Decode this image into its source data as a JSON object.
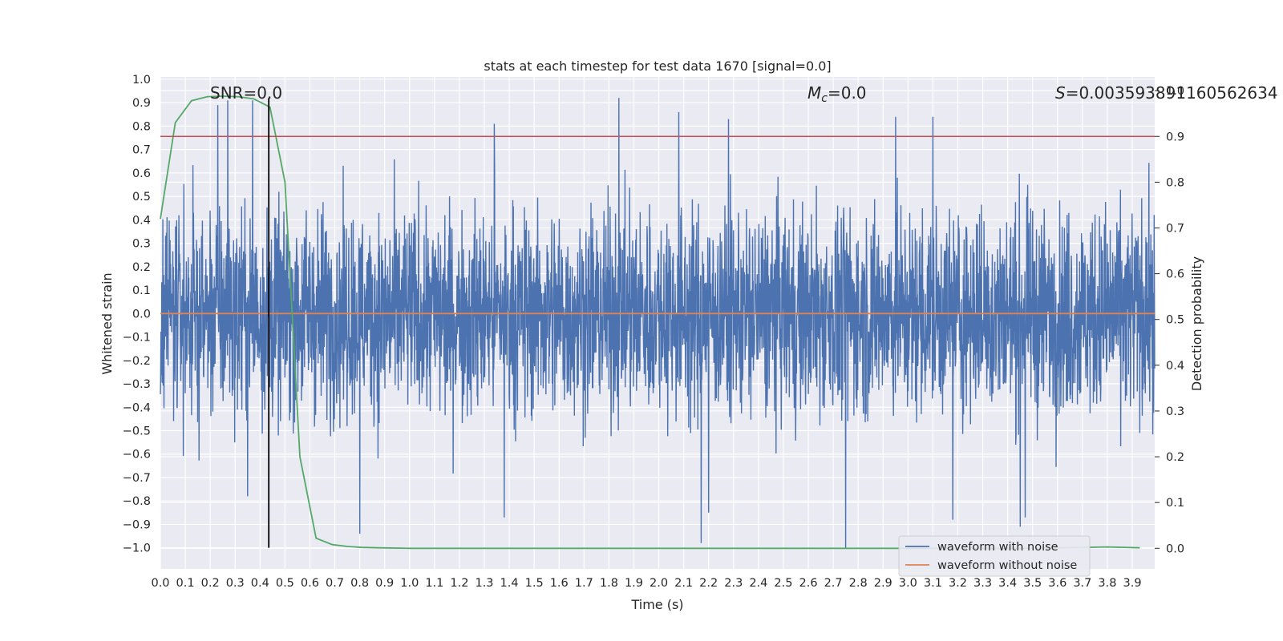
{
  "chart_data": {
    "type": "line",
    "title": "stats at each timestep for test data 1670 [signal=0.0]",
    "xlabel": "Time (s)",
    "ylabel": "Whitened strain",
    "y2label": "Detection probability",
    "xlim": [
      0.0,
      3.99
    ],
    "ylim": [
      -1.09,
      1.01
    ],
    "y2lim": [
      -0.045,
      1.03
    ],
    "xticks": [
      "0.0",
      "0.1",
      "0.2",
      "0.3",
      "0.4",
      "0.5",
      "0.6",
      "0.7",
      "0.8",
      "0.9",
      "1.0",
      "1.1",
      "1.2",
      "1.3",
      "1.4",
      "1.5",
      "1.6",
      "1.7",
      "1.8",
      "1.9",
      "2.0",
      "2.1",
      "2.2",
      "2.3",
      "2.4",
      "2.5",
      "2.6",
      "2.7",
      "2.8",
      "2.9",
      "3.0",
      "3.1",
      "3.2",
      "3.3",
      "3.4",
      "3.5",
      "3.6",
      "3.7",
      "3.8",
      "3.9"
    ],
    "yticks": [
      "1.0",
      "0.9",
      "0.8",
      "0.7",
      "0.6",
      "0.5",
      "0.4",
      "0.3",
      "0.2",
      "0.1",
      "0.0",
      "−0.1",
      "−0.2",
      "−0.3",
      "−0.4",
      "−0.5",
      "−0.6",
      "−0.7",
      "−0.8",
      "−0.9",
      "−1.0"
    ],
    "y2ticks": [
      "1.0",
      "0.9",
      "0.8",
      "0.7",
      "0.6",
      "0.5",
      "0.4",
      "0.3",
      "0.2",
      "0.1",
      "0.0"
    ],
    "grid": true,
    "legend_position": "bottom-right",
    "annotations": {
      "snr": "SNR=0.0",
      "mc_symbol": "M",
      "mc_sub": "c",
      "mc_value": "=0.0",
      "s_symbol": "S",
      "s_value": "=0.003593891160562634"
    },
    "series": [
      {
        "name": "waveform with noise",
        "color": "#4c72b0",
        "axis": "left",
        "style": "dense-noise",
        "typical_range": [
          -0.45,
          0.45
        ],
        "peaks_high": [
          [
            0.2,
            0.44
          ],
          [
            0.23,
            0.89
          ],
          [
            0.27,
            0.91
          ],
          [
            0.37,
            0.91
          ],
          [
            1.84,
            0.92
          ],
          [
            2.08,
            0.86
          ],
          [
            2.28,
            0.83
          ],
          [
            2.95,
            0.84
          ],
          [
            3.1,
            0.84
          ],
          [
            1.34,
            0.81
          ]
        ],
        "peaks_low": [
          [
            0.35,
            -0.78
          ],
          [
            0.8,
            -0.94
          ],
          [
            1.38,
            -0.87
          ],
          [
            2.17,
            -0.98
          ],
          [
            2.2,
            -0.85
          ],
          [
            2.75,
            -1.0
          ],
          [
            3.18,
            -0.88
          ],
          [
            3.45,
            -0.91
          ],
          [
            3.47,
            -0.87
          ]
        ]
      },
      {
        "name": "waveform without noise",
        "color": "#dd8452",
        "axis": "left",
        "x": [
          0.0,
          3.99
        ],
        "y": [
          0.0,
          0.0
        ]
      },
      {
        "name": "Detection probability",
        "color": "#55a868",
        "axis": "right",
        "x": [
          0.0,
          0.06,
          0.125,
          0.19,
          0.25,
          0.31,
          0.375,
          0.44,
          0.5,
          0.56,
          0.625,
          0.69,
          0.75,
          0.81,
          0.875,
          1.0,
          1.5,
          2.0,
          2.5,
          3.0,
          3.5,
          3.8,
          3.93
        ],
        "y": [
          0.72,
          0.93,
          0.978,
          0.987,
          0.988,
          0.987,
          0.982,
          0.964,
          0.8,
          0.2,
          0.022,
          0.008,
          0.004,
          0.002,
          0.001,
          0.0,
          0.0,
          0.0,
          0.0,
          0.0,
          0.0,
          0.003,
          0.001
        ]
      }
    ],
    "hlines": [
      {
        "axis": "right",
        "y": 0.9,
        "color": "#c44e52"
      }
    ],
    "vlines": [
      {
        "x": 0.435,
        "y_from": -1.0,
        "y_to": 0.92,
        "color": "#000000"
      }
    ]
  }
}
